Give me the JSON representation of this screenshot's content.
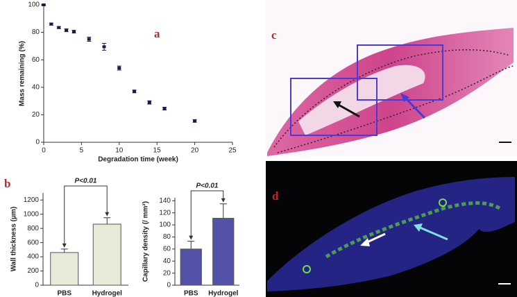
{
  "panel_labels": [
    "a",
    "b",
    "c",
    "d"
  ],
  "chart_data": [
    {
      "type": "scatter",
      "xlabel": "Degradation time (week)",
      "ylabel": "Mass remaining (%)",
      "x": [
        0,
        1,
        2,
        3,
        4,
        6,
        8,
        10,
        12,
        14,
        16,
        20
      ],
      "values": [
        100,
        86,
        83.5,
        81.5,
        80.5,
        75,
        69.5,
        54,
        37,
        29,
        24.5,
        15.5
      ],
      "errors": [
        0.5,
        0.8,
        0.8,
        1,
        1,
        1.5,
        2.5,
        1.5,
        1,
        1.2,
        1,
        1
      ],
      "color": "#1a1a4a",
      "xlim": [
        0,
        25
      ],
      "xticks": [
        0,
        5,
        10,
        15,
        20,
        25
      ],
      "ylim": [
        0,
        100
      ],
      "yticks": [
        0,
        20,
        40,
        60,
        80,
        100
      ]
    },
    {
      "type": "bar",
      "ylabel": "Wall thickness (μm)",
      "annotations": [
        "P<0.01"
      ],
      "categories": [
        "PBS",
        "Hydrogel"
      ],
      "values": [
        460,
        860
      ],
      "errors": [
        50,
        90
      ],
      "color": "#e6ead6",
      "ylim": [
        0,
        1300
      ],
      "yticks": [
        0,
        200,
        400,
        600,
        800,
        1000,
        1200
      ]
    },
    {
      "type": "bar",
      "ylabel": "Capillary density (/ mm²)",
      "annotations": [
        "P<0.01"
      ],
      "categories": [
        "PBS",
        "Hydrogel"
      ],
      "values": [
        60,
        111
      ],
      "errors": [
        13,
        24
      ],
      "color": "#5252a8",
      "ylim": [
        0,
        145
      ],
      "yticks": [
        0,
        20,
        40,
        60,
        80,
        100,
        120,
        140
      ]
    }
  ]
}
